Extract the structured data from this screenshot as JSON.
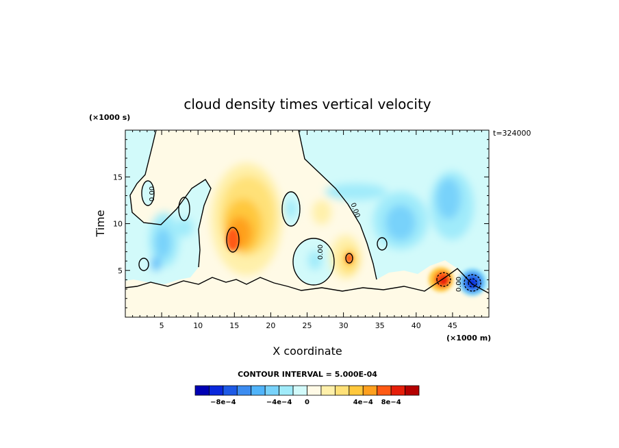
{
  "chart_data": {
    "type": "heatmap",
    "title": "cloud density times vertical velocity",
    "xlabel": "X coordinate",
    "ylabel": "Time",
    "x_units": "(×1000 m)",
    "y_units": "(×1000 s)",
    "timestamp": "t=324000",
    "xlim": [
      0,
      50
    ],
    "ylim": [
      0,
      20
    ],
    "x_ticks": [
      "5",
      "10",
      "15",
      "20",
      "25",
      "30",
      "35",
      "40",
      "45"
    ],
    "y_ticks": [
      "5",
      "10",
      "15"
    ],
    "zero_contour_label": "0.00",
    "contour_interval_text": "CONTOUR INTERVAL = 5.000E-04",
    "colorbar": {
      "levels": 16,
      "tick_labels": [
        "−8e−4",
        "−4e−4",
        "0",
        "4e−4",
        "8e−4"
      ],
      "colors": [
        "#0000b4",
        "#0a28dc",
        "#1e5ae6",
        "#3c8cf0",
        "#50b4fa",
        "#78d2fa",
        "#a0ebfa",
        "#d2fafa",
        "#fffae6",
        "#fff0aa",
        "#ffe178",
        "#ffc83c",
        "#ffa01e",
        "#ff5a14",
        "#e61e0a",
        "#b40000"
      ]
    },
    "features": [
      {
        "sign": "positive",
        "x": 17,
        "y": 10,
        "peak": 0.00065
      },
      {
        "sign": "positive",
        "x": 31,
        "y": 6,
        "peak": 0.0005
      },
      {
        "sign": "positive",
        "x": 44.5,
        "y": 4,
        "peak": 0.0009
      },
      {
        "sign": "negative",
        "x": 4.5,
        "y": 8,
        "peak": -0.0003
      },
      {
        "sign": "negative",
        "x": 38,
        "y": 9,
        "peak": -0.00025
      },
      {
        "sign": "negative",
        "x": 44,
        "y": 13,
        "peak": -0.0002
      },
      {
        "sign": "negative",
        "x": 47.5,
        "y": 3.5,
        "peak": -0.0009
      }
    ]
  }
}
